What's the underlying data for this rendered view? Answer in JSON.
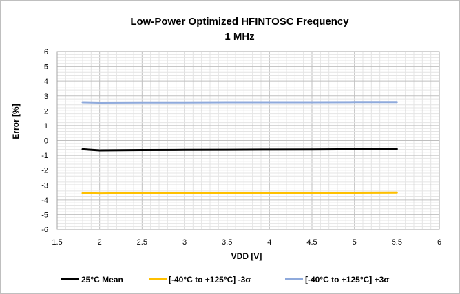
{
  "chart_data": {
    "type": "line",
    "title": "Low-Power Optimized HFINTOSC Frequency",
    "subtitle": "1 MHz",
    "xlabel": "VDD [V]",
    "ylabel": "Error [%]",
    "xlim": [
      1.5,
      6
    ],
    "ylim": [
      -6,
      6
    ],
    "xticks": [
      "1.5",
      "2",
      "2.5",
      "3",
      "3.5",
      "4",
      "4.5",
      "5",
      "5.5",
      "6"
    ],
    "yticks": [
      "6",
      "5",
      "4",
      "3",
      "2",
      "1",
      "0",
      "-1",
      "-2",
      "-3",
      "-4",
      "-5",
      "-6"
    ],
    "grid": true,
    "legend_position": "bottom",
    "series": [
      {
        "name": "25°C Mean",
        "color": "#000000",
        "x": [
          1.8,
          2.0,
          2.5,
          3.0,
          3.5,
          4.0,
          4.5,
          5.0,
          5.5
        ],
        "y": [
          -0.6,
          -0.67,
          -0.65,
          -0.64,
          -0.63,
          -0.62,
          -0.61,
          -0.6,
          -0.58
        ]
      },
      {
        "name": "[-40°C to +125°C]  -3σ",
        "color": "#ffc000",
        "x": [
          1.8,
          2.0,
          2.5,
          3.0,
          3.5,
          4.0,
          4.5,
          5.0,
          5.5
        ],
        "y": [
          -3.55,
          -3.57,
          -3.55,
          -3.54,
          -3.54,
          -3.53,
          -3.53,
          -3.52,
          -3.51
        ]
      },
      {
        "name": "[-40°C to +125°C] +3σ",
        "color": "#8faadc",
        "x": [
          1.8,
          2.0,
          2.5,
          3.0,
          3.5,
          4.0,
          4.5,
          5.0,
          5.5
        ],
        "y": [
          2.57,
          2.55,
          2.56,
          2.56,
          2.57,
          2.57,
          2.57,
          2.58,
          2.58
        ]
      }
    ]
  }
}
